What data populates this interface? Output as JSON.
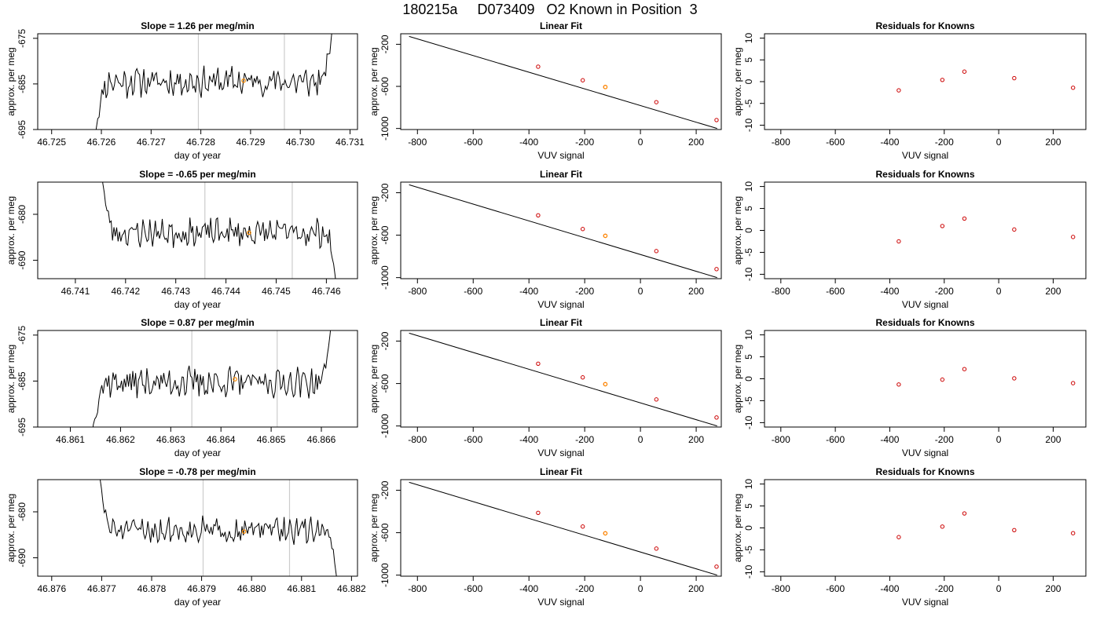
{
  "title": "180215a     D073409   O2 Known in Position  3",
  "colors": {
    "trace": "#000000",
    "fit_line": "#000000",
    "point": "#cc0000",
    "highlight": "#ff8c00",
    "vline": "#cccccc"
  },
  "chart_data": [
    {
      "type": "line",
      "title": "Slope =  1.26  per meg/min",
      "xlabel": "day of year",
      "ylabel": "approx. per meg",
      "xlim": [
        46.72472,
        46.73115
      ],
      "ylim": [
        -695,
        -674
      ],
      "xticks": [
        "46.725",
        "46.726",
        "46.727",
        "46.728",
        "46.729",
        "46.730",
        "46.731"
      ],
      "xtick_values": [
        46.725,
        46.726,
        46.727,
        46.728,
        46.729,
        46.73,
        46.731
      ],
      "yticks": [
        "-695",
        "-685",
        "-675"
      ],
      "ytick_values": [
        -695,
        -685,
        -675
      ],
      "vlines": [
        46.72795,
        46.72968
      ],
      "trace_start": 46.72587,
      "trace_end": 46.73065,
      "trace_start_y": -697,
      "trace_end_y": -672,
      "trace_mean": -684.5,
      "trace_amp": 2.6,
      "seed": 11,
      "highlight": [
        46.72886,
        -684.3
      ]
    },
    {
      "type": "line",
      "title": "Linear Fit",
      "xlabel": "VUV signal",
      "ylabel": "approx. per meg",
      "xlim": [
        -860,
        290
      ],
      "ylim": [
        -1010,
        -100
      ],
      "xticks": [
        "-800",
        "-600",
        "-400",
        "-200",
        "0",
        "200"
      ],
      "xtick_values": [
        -800,
        -600,
        -400,
        -200,
        0,
        200
      ],
      "yticks": [
        "-1000",
        "-600",
        "-200"
      ],
      "ytick_values": [
        -1000,
        -600,
        -200
      ],
      "fit_line": [
        [
          -830,
          -125
        ],
        [
          275,
          -1000
        ]
      ],
      "points": [
        [
          -367,
          -413
        ],
        [
          -207,
          -542
        ],
        [
          -126,
          -606
        ],
        [
          57,
          -750
        ],
        [
          273,
          -920
        ]
      ],
      "highlight": [
        -126,
        -606
      ]
    },
    {
      "type": "scatter",
      "title": "Residuals for Knowns",
      "xlabel": "VUV signal",
      "ylabel": "approx. per meg",
      "xlim": [
        -860,
        320
      ],
      "ylim": [
        -11,
        11
      ],
      "xticks": [
        "-800",
        "-600",
        "-400",
        "-200",
        "0",
        "200"
      ],
      "xtick_values": [
        -800,
        -600,
        -400,
        -200,
        0,
        200
      ],
      "yticks": [
        "-10",
        "-5",
        "0",
        "5",
        "10"
      ],
      "ytick_values": [
        -10,
        -5,
        0,
        5,
        10
      ],
      "points": [
        [
          -367,
          -2.0
        ],
        [
          -207,
          0.4
        ],
        [
          -126,
          2.3
        ],
        [
          57,
          0.8
        ],
        [
          273,
          -1.4
        ]
      ]
    },
    {
      "type": "line",
      "title": "Slope =  -0.65  per meg/min",
      "xlabel": "day of year",
      "ylabel": "approx. per meg",
      "xlim": [
        46.74025,
        46.74662
      ],
      "ylim": [
        -694,
        -673
      ],
      "xticks": [
        "46.741",
        "46.742",
        "46.743",
        "46.744",
        "46.745",
        "46.746"
      ],
      "xtick_values": [
        46.741,
        46.742,
        46.743,
        46.744,
        46.745,
        46.746
      ],
      "yticks": [
        "-690",
        "-680"
      ],
      "ytick_values": [
        -690,
        -680
      ],
      "vlines": [
        46.74358,
        46.74532
      ],
      "trace_start": 46.74152,
      "trace_end": 46.7462,
      "trace_start_y": -671,
      "trace_end_y": -696,
      "trace_mean": -684,
      "trace_amp": 2.4,
      "seed": 23,
      "highlight": [
        46.74446,
        -684.0
      ]
    },
    {
      "type": "line",
      "title": "Linear Fit",
      "xlabel": "VUV signal",
      "ylabel": "approx. per meg",
      "xlim": [
        -860,
        290
      ],
      "ylim": [
        -1010,
        -100
      ],
      "xticks": [
        "-800",
        "-600",
        "-400",
        "-200",
        "0",
        "200"
      ],
      "xtick_values": [
        -800,
        -600,
        -400,
        -200,
        0,
        200
      ],
      "yticks": [
        "-1000",
        "-600",
        "-200"
      ],
      "ytick_values": [
        -1000,
        -600,
        -200
      ],
      "fit_line": [
        [
          -830,
          -125
        ],
        [
          275,
          -1000
        ]
      ],
      "points": [
        [
          -367,
          -413
        ],
        [
          -207,
          -542
        ],
        [
          -126,
          -606
        ],
        [
          57,
          -750
        ],
        [
          273,
          -920
        ]
      ],
      "highlight": [
        -126,
        -606
      ]
    },
    {
      "type": "scatter",
      "title": "Residuals for Knowns",
      "xlabel": "VUV signal",
      "ylabel": "approx. per meg",
      "xlim": [
        -860,
        320
      ],
      "ylim": [
        -11,
        11
      ],
      "xticks": [
        "-800",
        "-600",
        "-400",
        "-200",
        "0",
        "200"
      ],
      "xtick_values": [
        -800,
        -600,
        -400,
        -200,
        0,
        200
      ],
      "yticks": [
        "-10",
        "-5",
        "0",
        "5",
        "10"
      ],
      "ytick_values": [
        -10,
        -5,
        0,
        5,
        10
      ],
      "points": [
        [
          -367,
          -2.5
        ],
        [
          -207,
          1.0
        ],
        [
          -126,
          2.7
        ],
        [
          57,
          0.2
        ],
        [
          273,
          -1.5
        ]
      ]
    },
    {
      "type": "line",
      "title": "Slope =  0.87  per meg/min",
      "xlabel": "day of year",
      "ylabel": "approx. per meg",
      "xlim": [
        46.86035,
        46.86672
      ],
      "ylim": [
        -695,
        -674
      ],
      "xticks": [
        "46.861",
        "46.862",
        "46.863",
        "46.864",
        "46.865",
        "46.866"
      ],
      "xtick_values": [
        46.861,
        46.862,
        46.863,
        46.864,
        46.865,
        46.866
      ],
      "yticks": [
        "-695",
        "-685",
        "-675"
      ],
      "ytick_values": [
        -695,
        -685,
        -675
      ],
      "vlines": [
        46.86342,
        46.86512
      ],
      "trace_start": 46.86143,
      "trace_end": 46.8662,
      "trace_start_y": -697,
      "trace_end_y": -672,
      "trace_mean": -685.3,
      "trace_amp": 2.6,
      "seed": 37,
      "highlight": [
        46.86428,
        -684.6
      ]
    },
    {
      "type": "line",
      "title": "Linear Fit",
      "xlabel": "VUV signal",
      "ylabel": "approx. per meg",
      "xlim": [
        -860,
        290
      ],
      "ylim": [
        -1010,
        -100
      ],
      "xticks": [
        "-800",
        "-600",
        "-400",
        "-200",
        "0",
        "200"
      ],
      "xtick_values": [
        -800,
        -600,
        -400,
        -200,
        0,
        200
      ],
      "yticks": [
        "-1000",
        "-600",
        "-200"
      ],
      "ytick_values": [
        -1000,
        -600,
        -200
      ],
      "fit_line": [
        [
          -830,
          -125
        ],
        [
          275,
          -1000
        ]
      ],
      "points": [
        [
          -367,
          -413
        ],
        [
          -207,
          -542
        ],
        [
          -126,
          -606
        ],
        [
          57,
          -750
        ],
        [
          273,
          -920
        ]
      ],
      "highlight": [
        -126,
        -606
      ]
    },
    {
      "type": "scatter",
      "title": "Residuals for Knowns",
      "xlabel": "VUV signal",
      "ylabel": "approx. per meg",
      "xlim": [
        -860,
        320
      ],
      "ylim": [
        -11,
        11
      ],
      "xticks": [
        "-800",
        "-600",
        "-400",
        "-200",
        "0",
        "200"
      ],
      "xtick_values": [
        -800,
        -600,
        -400,
        -200,
        0,
        200
      ],
      "yticks": [
        "-10",
        "-5",
        "0",
        "5",
        "10"
      ],
      "ytick_values": [
        -10,
        -5,
        0,
        5,
        10
      ],
      "points": [
        [
          -367,
          -1.3
        ],
        [
          -207,
          -0.2
        ],
        [
          -126,
          2.2
        ],
        [
          57,
          0.1
        ],
        [
          273,
          -1.0
        ]
      ]
    },
    {
      "type": "line",
      "title": "Slope =  -0.78  per meg/min",
      "xlabel": "day of year",
      "ylabel": "approx. per meg",
      "xlim": [
        46.87572,
        46.88212
      ],
      "ylim": [
        -694,
        -673
      ],
      "xticks": [
        "46.876",
        "46.877",
        "46.878",
        "46.879",
        "46.880",
        "46.881",
        "46.882"
      ],
      "xtick_values": [
        46.876,
        46.877,
        46.878,
        46.879,
        46.88,
        46.881,
        46.882
      ],
      "yticks": [
        "-690",
        "-680"
      ],
      "ytick_values": [
        -690,
        -680
      ],
      "vlines": [
        46.87903,
        46.88076
      ],
      "trace_start": 46.87694,
      "trace_end": 46.88172,
      "trace_start_y": -671,
      "trace_end_y": -696,
      "trace_mean": -684,
      "trace_amp": 2.2,
      "seed": 51,
      "highlight": [
        46.87985,
        -684.3
      ]
    },
    {
      "type": "line",
      "title": "Linear Fit",
      "xlabel": "VUV signal",
      "ylabel": "approx. per meg",
      "xlim": [
        -860,
        290
      ],
      "ylim": [
        -1010,
        -100
      ],
      "xticks": [
        "-800",
        "-600",
        "-400",
        "-200",
        "0",
        "200"
      ],
      "xtick_values": [
        -800,
        -600,
        -400,
        -200,
        0,
        200
      ],
      "yticks": [
        "-1000",
        "-600",
        "-200"
      ],
      "ytick_values": [
        -1000,
        -600,
        -200
      ],
      "fit_line": [
        [
          -830,
          -125
        ],
        [
          275,
          -1000
        ]
      ],
      "points": [
        [
          -367,
          -413
        ],
        [
          -207,
          -542
        ],
        [
          -126,
          -606
        ],
        [
          57,
          -750
        ],
        [
          273,
          -920
        ]
      ],
      "highlight": [
        -126,
        -606
      ]
    },
    {
      "type": "scatter",
      "title": "Residuals for Knowns",
      "xlabel": "VUV signal",
      "ylabel": "approx. per meg",
      "xlim": [
        -860,
        320
      ],
      "ylim": [
        -11,
        11
      ],
      "xticks": [
        "-800",
        "-600",
        "-400",
        "-200",
        "0",
        "200"
      ],
      "xtick_values": [
        -800,
        -600,
        -400,
        -200,
        0,
        200
      ],
      "yticks": [
        "-10",
        "-5",
        "0",
        "5",
        "10"
      ],
      "ytick_values": [
        -10,
        -5,
        0,
        5,
        10
      ],
      "points": [
        [
          -367,
          -2.1
        ],
        [
          -207,
          0.3
        ],
        [
          -126,
          3.3
        ],
        [
          57,
          -0.5
        ],
        [
          273,
          -1.2
        ]
      ]
    }
  ]
}
